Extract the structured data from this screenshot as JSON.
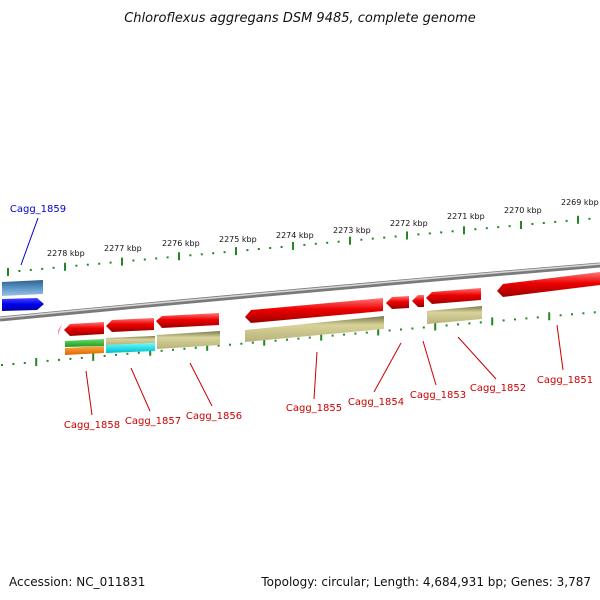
{
  "title": "Chloroflexus aggregans DSM 9485, complete genome",
  "footer": {
    "accession": "Accession: NC_011831",
    "info": "Topology: circular; Length: 4,684,931 bp; Genes: 3,787"
  },
  "scale_labels": [
    "2278 kbp",
    "2277 kbp",
    "2276 kbp",
    "2275 kbp",
    "2274 kbp",
    "2273 kbp",
    "2272 kbp",
    "2271 kbp",
    "2270 kbp",
    "2269 kbp"
  ],
  "gene_labels": [
    "Cagg_1859",
    "Cagg_1858",
    "Cagg_1857",
    "Cagg_1856",
    "Cagg_1855",
    "Cagg_1854",
    "Cagg_1853",
    "Cagg_1852",
    "Cagg_1851"
  ],
  "colors": {
    "cds": "#ee0000",
    "label_red": "#cc0000",
    "label_blue": "#0000cc",
    "tick": "#228822",
    "backbone": "#888888",
    "khaki": "#bdb76b",
    "steel_blue": "#4682b4",
    "blue": "#0000ee",
    "green": "#33bb33",
    "orange": "#ff8800",
    "cyan": "#00dddd",
    "pink": "#ff99bb"
  }
}
